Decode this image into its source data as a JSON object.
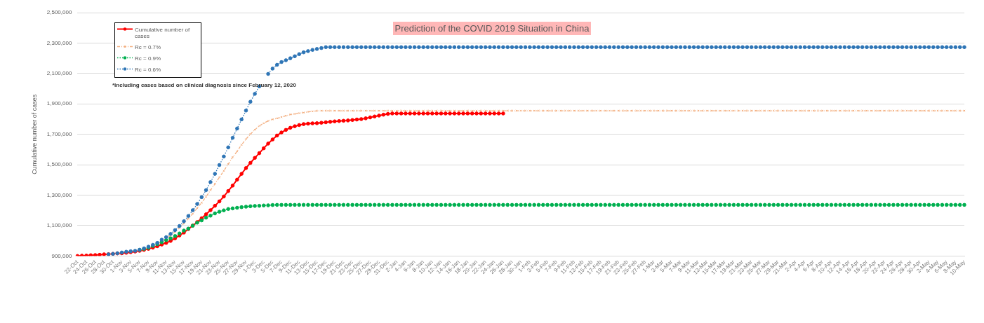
{
  "chart_data": {
    "type": "line",
    "title": "Prediction of the COVID 2019 Situation in China",
    "ylabel": "Cumulative number of cases",
    "annotations": [
      "*Including cases based on clinical diagnosis since February 12, 2020"
    ],
    "categories": [
      "22-Oct",
      null,
      "24-Oct",
      null,
      "26-Oct",
      null,
      "28-Oct",
      null,
      "30-Oct",
      null,
      "1-Nov",
      null,
      "3-Nov",
      null,
      "5-Nov",
      null,
      "7-Nov",
      null,
      "9-Nov",
      null,
      "11-Nov",
      null,
      "13-Nov",
      null,
      "15-Nov",
      null,
      "17-Nov",
      null,
      "19-Nov",
      null,
      "21-Nov",
      null,
      "23-Nov",
      null,
      "25-Nov",
      null,
      "27-Nov",
      null,
      "29-Nov",
      null,
      "1-Dec",
      null,
      "3-Dec",
      null,
      "5-Dec",
      null,
      "7-Dec",
      null,
      "9-Dec",
      null,
      "11-Dec",
      null,
      "13-Dec",
      null,
      "15-Dec",
      null,
      "17-Dec",
      null,
      "19-Dec",
      null,
      "21-Dec",
      null,
      "23-Dec",
      null,
      "25-Dec",
      null,
      "27-Dec",
      null,
      "29-Dec",
      null,
      "31-Dec",
      null,
      "2-Jan",
      null,
      "4-Jan",
      null,
      "6-Jan",
      null,
      "8-Jan",
      null,
      "10-Jan",
      null,
      "12-Jan",
      null,
      "14-Jan",
      null,
      "16-Jan",
      null,
      "18-Jan",
      null,
      "20-Jan",
      null,
      "22-Jan",
      null,
      "24-Jan",
      null,
      "26-Jan",
      null,
      "28-Jan",
      null,
      "30-Jan",
      null,
      "1-Feb",
      null,
      "3-Feb",
      null,
      "5-Feb",
      null,
      "7-Feb",
      null,
      "9-Feb",
      null,
      "11-Feb",
      null,
      "13-Feb",
      null,
      "15-Feb",
      null,
      "17-Feb",
      null,
      "19-Feb",
      null,
      "21-Feb",
      null,
      "23-Feb",
      null,
      "25-Feb",
      null,
      "27-Feb",
      null,
      "1-Mar",
      null,
      "3-Mar",
      null,
      "5-Mar",
      null,
      "7-Mar",
      null,
      "9-Mar",
      null,
      "11-Mar",
      null,
      "13-Mar",
      null,
      "15-Mar",
      null,
      "17-Mar",
      null,
      "19-Mar",
      null,
      "21-Mar",
      null,
      "23-Mar",
      null,
      "25-Mar",
      null,
      "27-Mar",
      null,
      "29-Mar",
      null,
      "31-Mar",
      null,
      "2-Apr",
      null,
      "4-Apr",
      null,
      "6-Apr",
      null,
      "8-Apr",
      null,
      "10-Apr",
      null,
      "12-Apr",
      null,
      "14-Apr",
      null,
      "16-Apr",
      null,
      "18-Apr",
      null,
      "20-Apr",
      null,
      "22-Apr",
      null,
      "24-Apr",
      null,
      "26-Apr",
      null,
      "28-Apr",
      null,
      "30-Apr",
      null,
      "2-May",
      null,
      "4-May",
      null,
      "6-May",
      null,
      "8-May",
      null,
      "10-May"
    ],
    "series": [
      {
        "name": "Cumulative number of cases",
        "color": "#ff0000",
        "line_style": "solid",
        "marker": "circle",
        "values": [
          900000,
          902000,
          903000,
          905000,
          906000,
          908000,
          911000,
          912000,
          914000,
          917000,
          918000,
          921000,
          925000,
          929000,
          934000,
          940000,
          947000,
          955000,
          964000,
          975000,
          986000,
          999000,
          1016000,
          1035000,
          1054000,
          1077000,
          1100000,
          1123000,
          1148000,
          1174000,
          1201000,
          1230000,
          1259000,
          1291000,
          1327000,
          1363000,
          1402000,
          1440000,
          1478000,
          1512000,
          1545000,
          1576000,
          1608000,
          1639000,
          1666000,
          1692000,
          1712000,
          1729000,
          1743000,
          1753000,
          1761000,
          1767000,
          1770000,
          1772000,
          1773000,
          1776000,
          1779000,
          1782000,
          1785000,
          1787000,
          1789000,
          1791000,
          1794000,
          1797000,
          1800000,
          1805000,
          1811000,
          1817000,
          1823000,
          1829000,
          1834000,
          1837000,
          1837000,
          1837000,
          1837000,
          1837000,
          1837000,
          1837000,
          1837000,
          1837000,
          1837000,
          1837000,
          1837000,
          1837000,
          1837000,
          1837000,
          1837000,
          1837000,
          1837000,
          1837000,
          1837000,
          1837000,
          1837000,
          1837000,
          1837000,
          1837000,
          1837000,
          null,
          null,
          null,
          null,
          null,
          null,
          null,
          null,
          null,
          null,
          null,
          null,
          null,
          null,
          null,
          null,
          null,
          null,
          null,
          null,
          null,
          null,
          null,
          null,
          null,
          null,
          null,
          null,
          null,
          null,
          null,
          null,
          null,
          null,
          null,
          null,
          null,
          null,
          null,
          null,
          null,
          null,
          null,
          null,
          null,
          null,
          null,
          null,
          null,
          null,
          null,
          null,
          null,
          null,
          null,
          null,
          null,
          null,
          null,
          null,
          null,
          null,
          null,
          null,
          null,
          null,
          null,
          null,
          null,
          null,
          null,
          null,
          null,
          null,
          null,
          null,
          null,
          null,
          null,
          null,
          null,
          null,
          null,
          null,
          null,
          null,
          null,
          null,
          null,
          null,
          null,
          null,
          null,
          null,
          null,
          null,
          null,
          null,
          null,
          null,
          null,
          null,
          null,
          null
        ]
      },
      {
        "name": "Rc = 0.7%",
        "color": "#f4b183",
        "line_style": "dashed",
        "marker": "cross",
        "values": [
          null,
          null,
          null,
          null,
          null,
          null,
          null,
          911000,
          914000,
          917000,
          921000,
          925000,
          929000,
          933000,
          937000,
          943000,
          954000,
          966000,
          978000,
          995000,
          1013000,
          1035000,
          1057000,
          1085000,
          1114000,
          1145000,
          1178000,
          1215000,
          1250000,
          1290000,
          1333000,
          1374000,
          1417000,
          1460000,
          1504000,
          1550000,
          1588000,
          1631000,
          1668000,
          1701000,
          1730000,
          1755000,
          1773000,
          1788000,
          1798000,
          1805000,
          1813000,
          1822000,
          1830000,
          1834000,
          1839000,
          1843000,
          1848000,
          1851000,
          1854000,
          1855000,
          1855000,
          1855000,
          1855000,
          1855000,
          1855000,
          1855000,
          1855000,
          1855000,
          1855000,
          1855000,
          1855000,
          1855000,
          1855000,
          1855000,
          1855000,
          1855000,
          1855000,
          1855000,
          1855000,
          1855000,
          1855000,
          1855000,
          1855000,
          1855000,
          1855000,
          1855000,
          1855000,
          1855000,
          1855000,
          1855000,
          1855000,
          1855000,
          1855000,
          1855000,
          1855000,
          1855000,
          1855000,
          1855000,
          1855000,
          1855000,
          1855000,
          1855000,
          1855000,
          1855000,
          1855000,
          1855000,
          1855000,
          1855000,
          1855000,
          1855000,
          1855000,
          1855000,
          1855000,
          1855000,
          1855000,
          1855000,
          1855000,
          1855000,
          1855000,
          1855000,
          1855000,
          1855000,
          1855000,
          1855000,
          1855000,
          1855000,
          1855000,
          1855000,
          1855000,
          1855000,
          1855000,
          1855000,
          1855000,
          1855000,
          1855000,
          1855000,
          1855000,
          1855000,
          1855000,
          1855000,
          1855000,
          1855000,
          1855000,
          1855000,
          1855000,
          1855000,
          1855000,
          1855000,
          1855000,
          1855000,
          1855000,
          1855000,
          1855000,
          1855000,
          1855000,
          1855000,
          1855000,
          1855000,
          1855000,
          1855000,
          1855000,
          1855000,
          1855000,
          1855000,
          1855000,
          1855000,
          1855000,
          1855000,
          1855000,
          1855000,
          1855000,
          1855000,
          1855000,
          1855000,
          1855000,
          1855000,
          1855000,
          1855000,
          1855000,
          1855000,
          1855000,
          1855000,
          1855000,
          1855000,
          1855000,
          1855000,
          1855000,
          1855000,
          1855000,
          1855000,
          1855000,
          1855000,
          1855000,
          1855000,
          1855000,
          1855000,
          1855000,
          1855000,
          1855000,
          1855000,
          1855000,
          1855000,
          1855000,
          1855000,
          1855000
        ]
      },
      {
        "name": "Rc = 0.9%",
        "color": "#00b050",
        "line_style": "dotted",
        "marker": "circle",
        "values": [
          null,
          null,
          null,
          null,
          null,
          null,
          null,
          null,
          null,
          null,
          null,
          null,
          null,
          null,
          940000,
          947000,
          954000,
          966000,
          978000,
          990000,
          1004000,
          1016000,
          1031000,
          1048000,
          1067000,
          1080000,
          1099000,
          1119000,
          1134000,
          1152000,
          1165000,
          1180000,
          1191000,
          1200000,
          1209000,
          1213000,
          1217000,
          1221000,
          1224000,
          1227000,
          1229000,
          1230000,
          1232000,
          1233000,
          1235000,
          1236000,
          1236000,
          1236000,
          1236000,
          1236000,
          1236000,
          1236000,
          1236000,
          1236000,
          1236000,
          1236000,
          1236000,
          1236000,
          1236000,
          1236000,
          1236000,
          1236000,
          1236000,
          1236000,
          1236000,
          1236000,
          1236000,
          1236000,
          1236000,
          1236000,
          1236000,
          1236000,
          1236000,
          1236000,
          1236000,
          1236000,
          1236000,
          1236000,
          1236000,
          1236000,
          1236000,
          1236000,
          1236000,
          1236000,
          1236000,
          1236000,
          1236000,
          1236000,
          1236000,
          1236000,
          1236000,
          1236000,
          1236000,
          1236000,
          1236000,
          1236000,
          1236000,
          1236000,
          1236000,
          1236000,
          1236000,
          1236000,
          1236000,
          1236000,
          1236000,
          1236000,
          1236000,
          1236000,
          1236000,
          1236000,
          1236000,
          1236000,
          1236000,
          1236000,
          1236000,
          1236000,
          1236000,
          1236000,
          1236000,
          1236000,
          1236000,
          1236000,
          1236000,
          1236000,
          1236000,
          1236000,
          1236000,
          1236000,
          1236000,
          1236000,
          1236000,
          1236000,
          1236000,
          1236000,
          1236000,
          1236000,
          1236000,
          1236000,
          1236000,
          1236000,
          1236000,
          1236000,
          1236000,
          1236000,
          1236000,
          1236000,
          1236000,
          1236000,
          1236000,
          1236000,
          1236000,
          1236000,
          1236000,
          1236000,
          1236000,
          1236000,
          1236000,
          1236000,
          1236000,
          1236000,
          1236000,
          1236000,
          1236000,
          1236000,
          1236000,
          1236000,
          1236000,
          1236000,
          1236000,
          1236000,
          1236000,
          1236000,
          1236000,
          1236000,
          1236000,
          1236000,
          1236000,
          1236000,
          1236000,
          1236000,
          1236000,
          1236000,
          1236000,
          1236000,
          1236000,
          1236000,
          1236000,
          1236000,
          1236000,
          1236000,
          1236000,
          1236000,
          1236000,
          1236000,
          1236000,
          1236000,
          1236000,
          1236000,
          1236000,
          1236000,
          1236000
        ]
      },
      {
        "name": "Rc = 0.6%",
        "color": "#2e75b6",
        "line_style": "dotted",
        "marker": "circle",
        "values": [
          null,
          null,
          null,
          null,
          null,
          null,
          null,
          911000,
          914000,
          918000,
          923000,
          928000,
          931000,
          934000,
          941000,
          950000,
          961000,
          973000,
          986000,
          1007000,
          1024000,
          1045000,
          1070000,
          1097000,
          1128000,
          1163000,
          1201000,
          1242000,
          1287000,
          1333000,
          1386000,
          1440000,
          1498000,
          1554000,
          1614000,
          1677000,
          1738000,
          1798000,
          1856000,
          1914000,
          1966000,
          2015000,
          null,
          2097000,
          2132000,
          2157000,
          2175000,
          2187000,
          2200000,
          2213000,
          2227000,
          2239000,
          2247000,
          2255000,
          2261000,
          2267000,
          2273000,
          2273000,
          2273000,
          2273000,
          2273000,
          2273000,
          2273000,
          2273000,
          2273000,
          2273000,
          2273000,
          2273000,
          2273000,
          2273000,
          2273000,
          2273000,
          2273000,
          2273000,
          2273000,
          2273000,
          2273000,
          2273000,
          2273000,
          2273000,
          2273000,
          2273000,
          2273000,
          2273000,
          2273000,
          2273000,
          2273000,
          2273000,
          2273000,
          2273000,
          2273000,
          2273000,
          2273000,
          2273000,
          2273000,
          2273000,
          2273000,
          2273000,
          2273000,
          2273000,
          2273000,
          2273000,
          2273000,
          2273000,
          2273000,
          2273000,
          2273000,
          2273000,
          2273000,
          2273000,
          2273000,
          2273000,
          2273000,
          2273000,
          2273000,
          2273000,
          2273000,
          2273000,
          2273000,
          2273000,
          2273000,
          2273000,
          2273000,
          2273000,
          2273000,
          2273000,
          2273000,
          2273000,
          2273000,
          2273000,
          2273000,
          2273000,
          2273000,
          2273000,
          2273000,
          2273000,
          2273000,
          2273000,
          2273000,
          2273000,
          2273000,
          2273000,
          2273000,
          2273000,
          2273000,
          2273000,
          2273000,
          2273000,
          2273000,
          2273000,
          2273000,
          2273000,
          2273000,
          2273000,
          2273000,
          2273000,
          2273000,
          2273000,
          2273000,
          2273000,
          2273000,
          2273000,
          2273000,
          2273000,
          2273000,
          2273000,
          2273000,
          2273000,
          2273000,
          2273000,
          2273000,
          2273000,
          2273000,
          2273000,
          2273000,
          2273000,
          2273000,
          2273000,
          2273000,
          2273000,
          2273000,
          2273000,
          2273000,
          2273000,
          2273000,
          2273000,
          2273000,
          2273000,
          2273000,
          2273000,
          2273000,
          2273000,
          2273000,
          2273000,
          2273000,
          2273000,
          2273000,
          2273000,
          2273000,
          2273000,
          2273000
        ]
      }
    ],
    "ylim": [
      900000,
      2500000
    ],
    "yticks": [
      {
        "value": 900000,
        "label": "900,000"
      },
      {
        "value": 1100000,
        "label": "1,100,000"
      },
      {
        "value": 1300000,
        "label": "1,300,000"
      },
      {
        "value": 1500000,
        "label": "1,500,000"
      },
      {
        "value": 1700000,
        "label": "1,700,000"
      },
      {
        "value": 1900000,
        "label": "1,900,000"
      },
      {
        "value": 2100000,
        "label": "2,100,000"
      },
      {
        "value": 2300000,
        "label": "2,300,000"
      },
      {
        "value": 2500000,
        "label": "2,500,000"
      }
    ],
    "grid": "y",
    "legend": "top left"
  }
}
